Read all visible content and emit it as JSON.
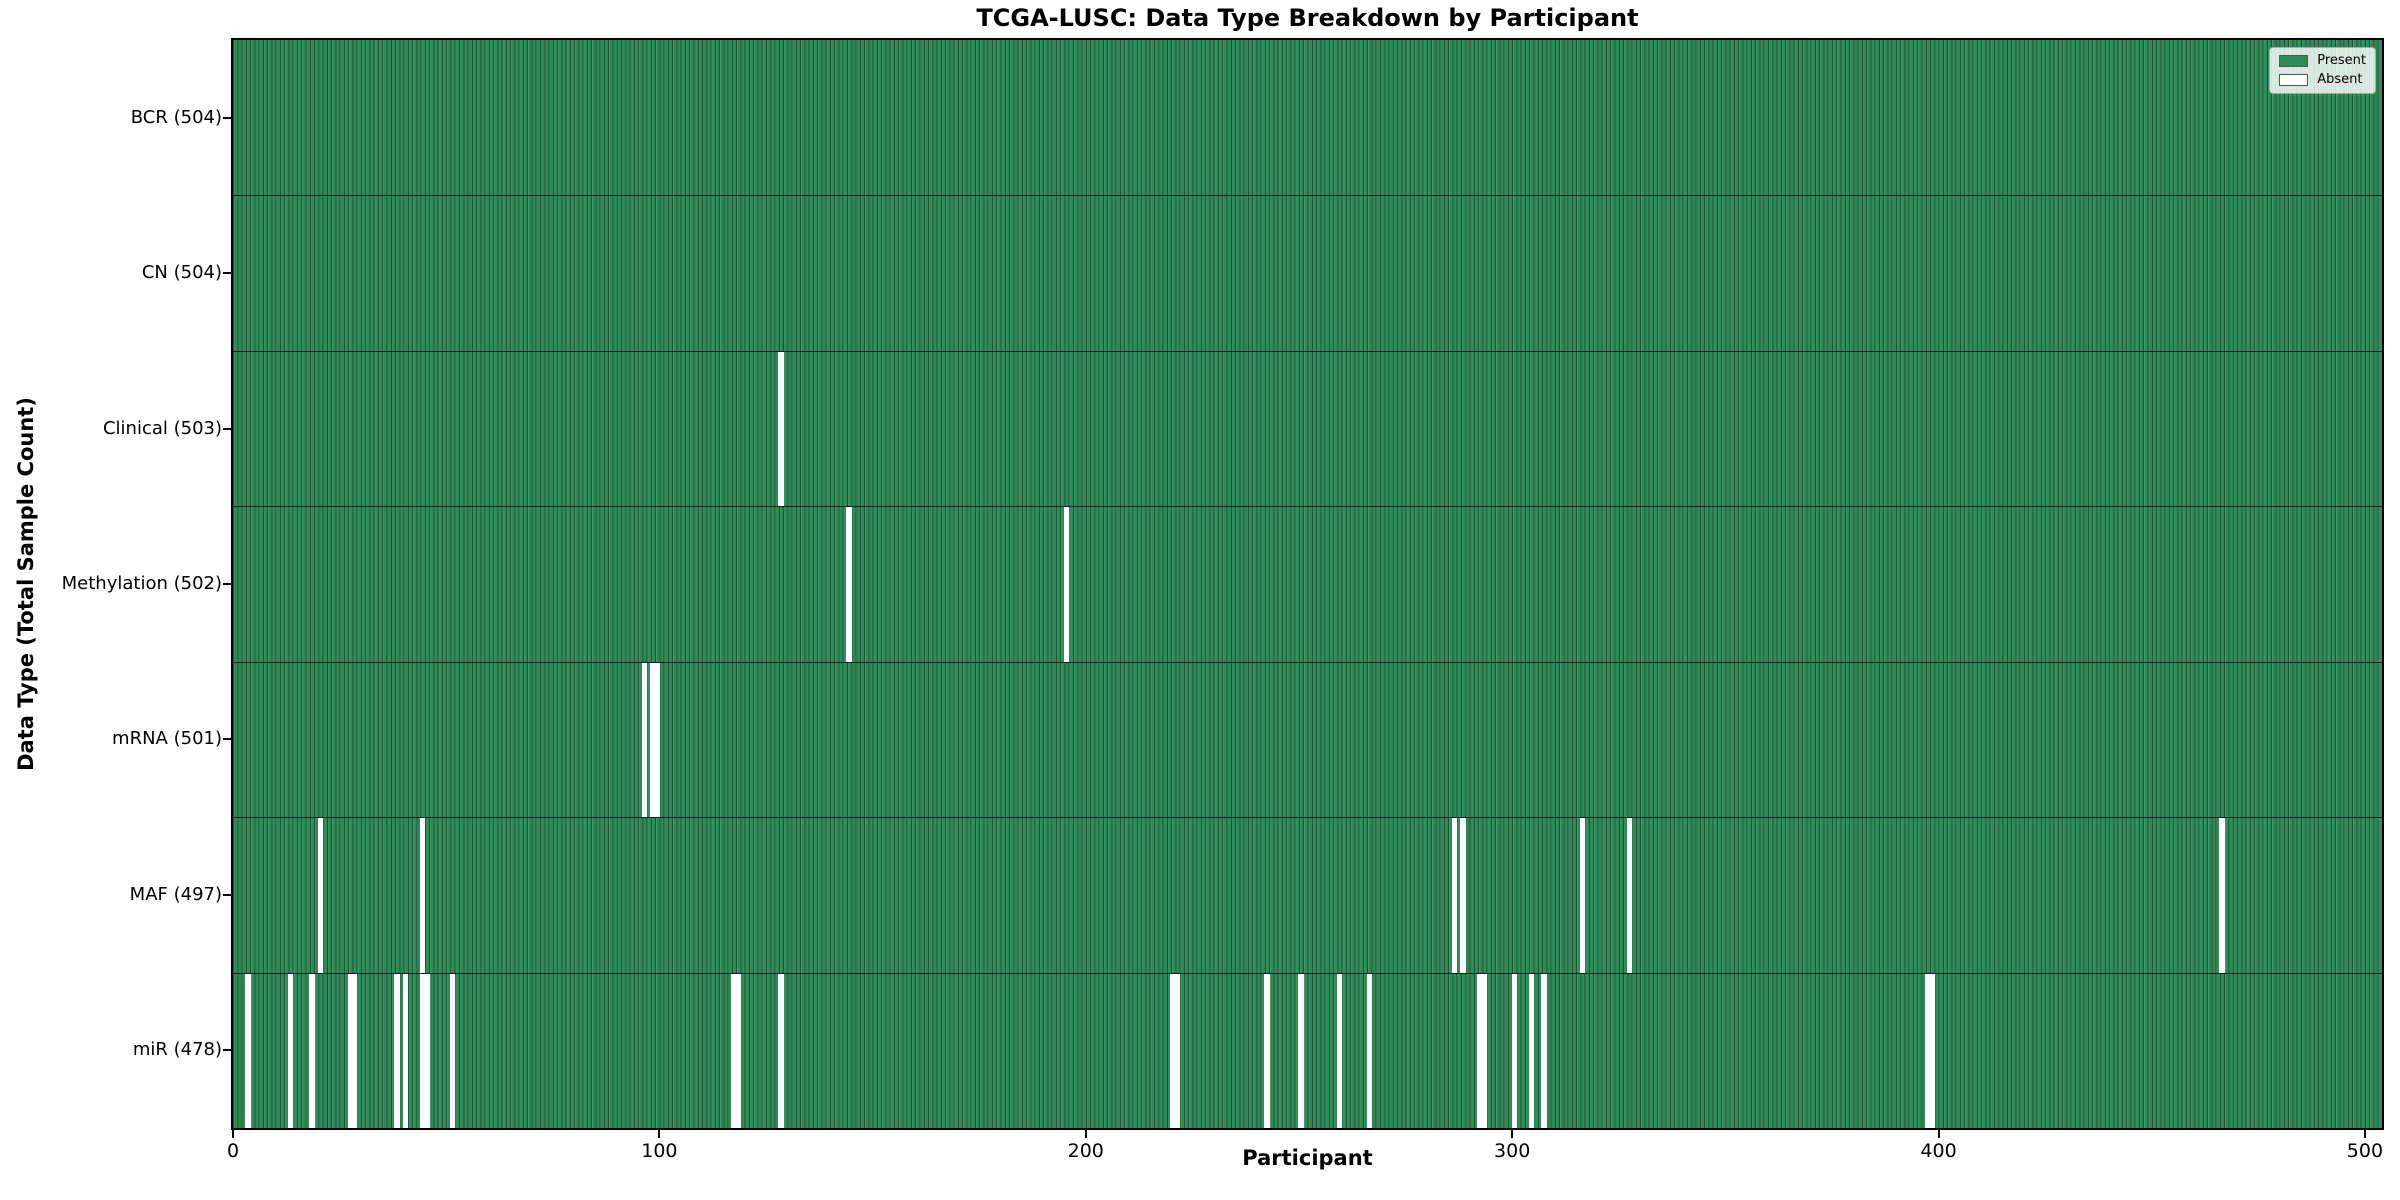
{
  "chart_data": {
    "type": "heatmap",
    "title": "TCGA-LUSC: Data Type Breakdown by Participant",
    "xlabel": "Participant",
    "ylabel": "Data Type (Total Sample Count)",
    "x_ticks": [
      0,
      100,
      200,
      300,
      400,
      500
    ],
    "xlim": [
      0,
      504
    ],
    "n_participants": 504,
    "grid": false,
    "legend_position": "upper right",
    "legend": [
      {
        "label": "Present",
        "color": "#2e8b57"
      },
      {
        "label": "Absent",
        "color": "#ffffff"
      }
    ],
    "rows": [
      {
        "name": "bcr",
        "label": "BCR (504)",
        "data_type": "BCR",
        "total": 504,
        "absent_participants": []
      },
      {
        "name": "cn",
        "label": "CN (504)",
        "data_type": "CN",
        "total": 504,
        "absent_participants": []
      },
      {
        "name": "clinical",
        "label": "Clinical (503)",
        "data_type": "Clinical",
        "total": 503,
        "absent_participants": [
          128
        ]
      },
      {
        "name": "methylation",
        "label": "Methylation (502)",
        "data_type": "Methylation",
        "total": 502,
        "absent_participants": [
          144,
          195
        ]
      },
      {
        "name": "mrna",
        "label": "mRNA (501)",
        "data_type": "mRNA",
        "total": 501,
        "absent_participants": [
          96,
          98,
          99
        ]
      },
      {
        "name": "maf",
        "label": "MAF (497)",
        "data_type": "MAF",
        "total": 497,
        "absent_participants": [
          20,
          44,
          286,
          288,
          316,
          327,
          466
        ]
      },
      {
        "name": "mir",
        "label": "miR (478)",
        "data_type": "miR",
        "total": 478,
        "absent_participants": [
          3,
          13,
          18,
          27,
          28,
          38,
          40,
          44,
          45,
          51,
          117,
          118,
          128,
          220,
          221,
          242,
          250,
          259,
          266,
          292,
          293,
          300,
          304,
          307,
          397,
          398
        ]
      }
    ],
    "colors": {
      "present": "#2e8b57",
      "absent": "#ffffff",
      "bar_edge": "rgba(8,38,24,0.55)"
    }
  }
}
